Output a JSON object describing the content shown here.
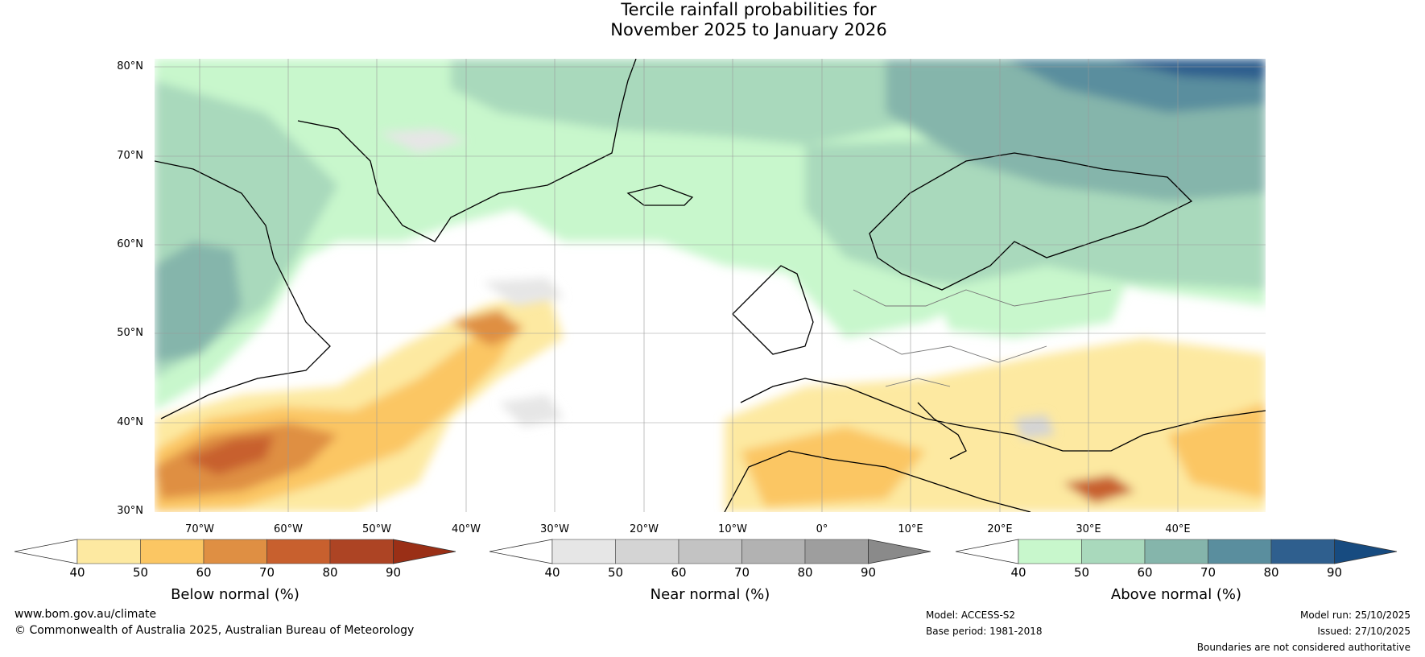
{
  "title": {
    "line1": "Tercile rainfall probabilities for",
    "line2": "November 2025 to January 2026"
  },
  "lat_labels": [
    "80°N",
    "70°N",
    "60°N",
    "50°N",
    "40°N",
    "30°N"
  ],
  "lon_labels": [
    "70°W",
    "60°W",
    "50°W",
    "40°W",
    "30°W",
    "20°W",
    "10°W",
    "0°",
    "10°E",
    "20°E",
    "30°E",
    "40°E"
  ],
  "colorbars": [
    {
      "name": "below",
      "label": "Below normal (%)",
      "ticks": [
        "40",
        "50",
        "60",
        "70",
        "80",
        "90"
      ],
      "colors": [
        "#ffffff",
        "#fde9a1",
        "#fbc663",
        "#df8f43",
        "#c8602e",
        "#ad4424",
        "#9a2f16"
      ]
    },
    {
      "name": "near",
      "label": "Near normal (%)",
      "ticks": [
        "40",
        "50",
        "60",
        "70",
        "80",
        "90"
      ],
      "colors": [
        "#ffffff",
        "#e6e6e6",
        "#d4d4d4",
        "#c3c3c3",
        "#b2b2b2",
        "#9e9e9e",
        "#8a8a8a"
      ]
    },
    {
      "name": "above",
      "label": "Above normal (%)",
      "ticks": [
        "40",
        "50",
        "60",
        "70",
        "80",
        "90"
      ],
      "colors": [
        "#ffffff",
        "#c8f7cc",
        "#a9d9bc",
        "#85b5ab",
        "#5a8e9e",
        "#2f5f8e",
        "#174b80"
      ]
    }
  ],
  "footer": {
    "website": "www.bom.gov.au/climate",
    "copyright": "© Commonwealth of Australia 2025, Australian Bureau of Meteorology",
    "model": "Model: ACCESS-S2",
    "base_period": "Base period: 1981-2018",
    "model_run": "Model run: 25/10/2025",
    "issued": "Issued: 27/10/2025",
    "disclaimer": "Boundaries are not considered authoritative"
  }
}
